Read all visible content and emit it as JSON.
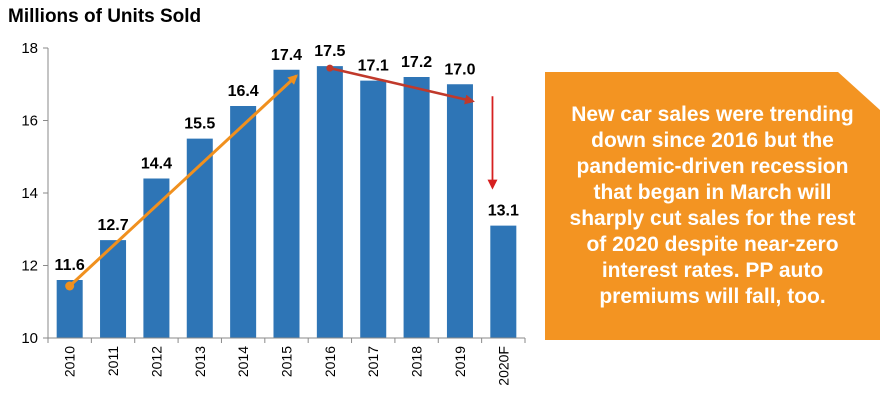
{
  "chart_data": {
    "type": "bar",
    "title": "Millions of Units Sold",
    "xlabel": "",
    "ylabel": "",
    "categories": [
      "2010",
      "2011",
      "2012",
      "2013",
      "2014",
      "2015",
      "2016",
      "2017",
      "2018",
      "2019",
      "2020F"
    ],
    "values": [
      11.6,
      12.7,
      14.4,
      15.5,
      16.4,
      17.4,
      17.5,
      17.1,
      17.2,
      17.0,
      13.1
    ],
    "data_labels": [
      "11.6",
      "12.7",
      "14.4",
      "15.5",
      "16.4",
      "17.4",
      "17.5",
      "17.1",
      "17.2",
      "17.0",
      "13.1"
    ],
    "ylim": [
      10,
      18
    ],
    "yticks": [
      10,
      12,
      14,
      16,
      18
    ],
    "grid": false,
    "bar_color": "#2E75B6",
    "annotations": {
      "uptrend_arrow": {
        "from": "2010",
        "to": "2015",
        "color": "#F0901E"
      },
      "downtrend_arrow": {
        "from": "2016",
        "to": "2019",
        "color": "#C0392B"
      },
      "drop_arrow": {
        "at": "2019",
        "to": "2020F",
        "color": "#D62020"
      }
    }
  },
  "callout": {
    "text": "New car sales were trending down since 2016 but the pandemic-driven recession that began in March will sharply cut sales for the rest of 2020 despite near-zero interest rates. PP auto premiums will fall, too.",
    "color": "#F39422"
  }
}
